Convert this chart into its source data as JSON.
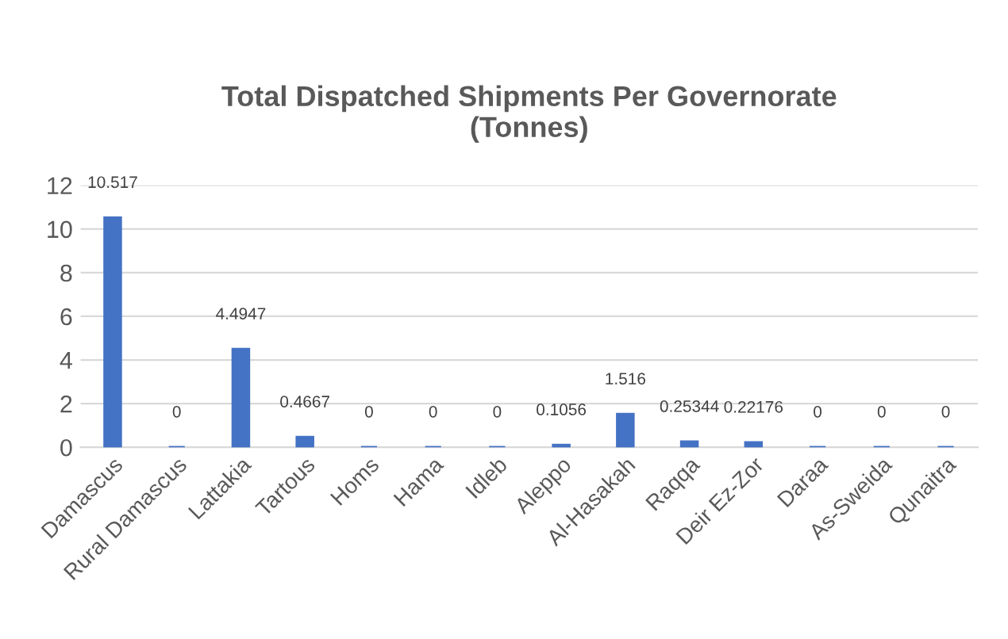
{
  "chart_data": {
    "type": "bar",
    "title": "Total Dispatched Shipments Per Governorate\n(Tonnes)",
    "categories": [
      "Damascus",
      "Rural Damascus",
      "Lattakia",
      "Tartous",
      "Homs",
      "Hama",
      "Idleb",
      "Aleppo",
      "Al-Hasakah",
      "Raqqa",
      "Deir Ez-Zor",
      "Daraa",
      "As-Sweida",
      "Qunaitra"
    ],
    "values": [
      10.517,
      0,
      4.4947,
      0.4667,
      0,
      0,
      0,
      0.1056,
      1.516,
      0.25344,
      0.22176,
      0,
      0,
      0
    ],
    "color": "#4472c4",
    "ylim": [
      0,
      12
    ],
    "yticks": [
      0,
      2,
      4,
      6,
      8,
      10,
      12
    ],
    "grid": "y",
    "data_labels": true
  }
}
